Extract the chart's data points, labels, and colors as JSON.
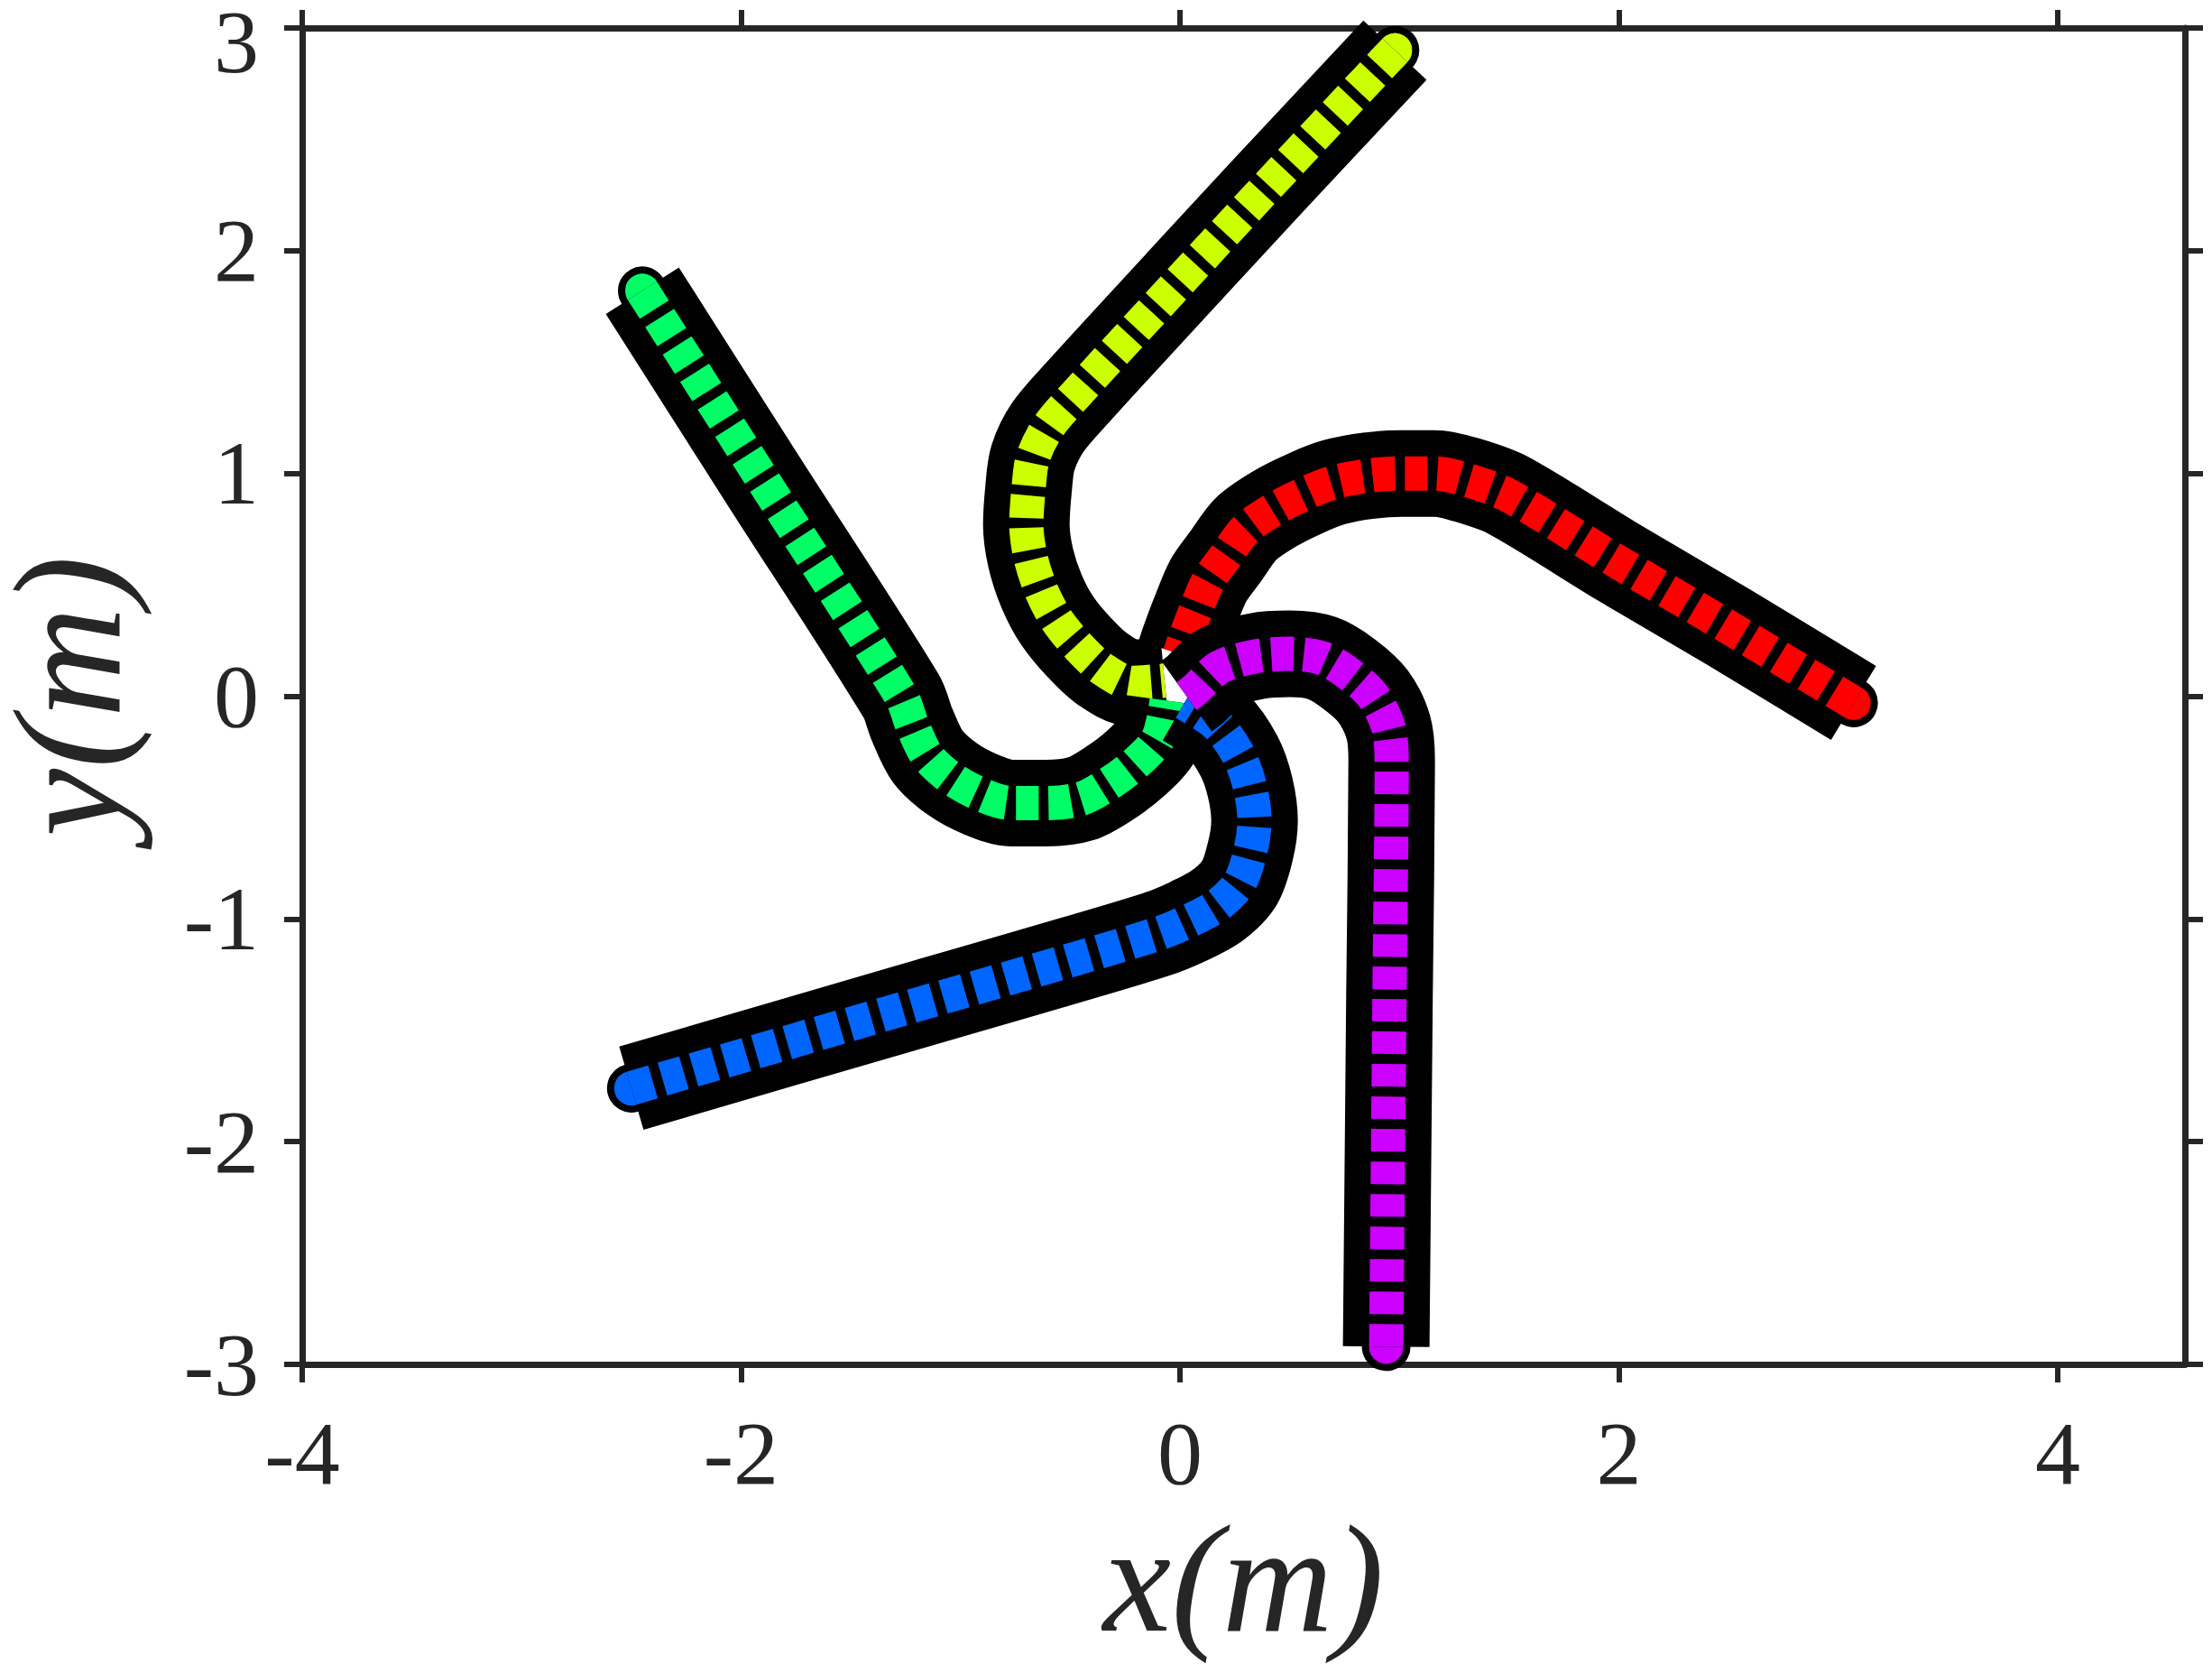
{
  "chart_data": {
    "type": "line",
    "xlabel": "x(m)",
    "ylabel": "y(m)",
    "xlim": [
      -4,
      4.58
    ],
    "ylim": [
      -3,
      3
    ],
    "xticks": [
      -4,
      -2,
      0,
      2,
      4
    ],
    "yticks": [
      -3,
      -2,
      -1,
      0,
      1,
      2,
      3
    ],
    "grid": false,
    "series": [
      {
        "color": "#000000",
        "line_style": "solid",
        "marker": "none",
        "x": [
          3.07,
          2.5,
          2.0,
          1.5,
          1.31,
          1.16,
          1.01,
          0.86,
          0.7,
          0.57,
          0.43,
          0.3,
          0.21,
          0.13,
          0.07,
          0.02,
          0.0
        ],
        "values": [
          -0.03,
          0.31,
          0.6,
          0.9,
          0.97,
          1.0,
          1.0,
          0.99,
          0.96,
          0.91,
          0.84,
          0.75,
          0.63,
          0.52,
          0.38,
          0.25,
          0.19
        ]
      },
      {
        "color": "#ff0000",
        "line_style": "dashed",
        "marker": "none",
        "x": [
          3.07,
          2.5,
          2.0,
          1.5,
          1.31,
          1.16,
          1.01,
          0.86,
          0.7,
          0.57,
          0.43,
          0.3,
          0.21,
          0.13,
          0.07,
          0.02,
          0.0
        ],
        "values": [
          -0.03,
          0.31,
          0.6,
          0.9,
          0.97,
          1.0,
          1.0,
          0.99,
          0.96,
          0.91,
          0.84,
          0.75,
          0.63,
          0.52,
          0.38,
          0.25,
          0.19
        ]
      },
      {
        "color": "#000000",
        "line_style": "solid",
        "marker": "none",
        "x": [
          0.98,
          0.4,
          -0.2,
          -0.46,
          -0.6,
          -0.67,
          -0.69,
          -0.7,
          -0.68,
          -0.63,
          -0.56,
          -0.46,
          -0.35,
          -0.22,
          -0.07
        ],
        "values": [
          2.9,
          2.29,
          1.65,
          1.37,
          1.21,
          1.07,
          0.93,
          0.77,
          0.62,
          0.47,
          0.34,
          0.22,
          0.12,
          0.06,
          0.07
        ]
      },
      {
        "color": "#ccff00",
        "line_style": "dashed",
        "marker": "none",
        "x": [
          0.98,
          0.4,
          -0.2,
          -0.46,
          -0.6,
          -0.67,
          -0.69,
          -0.7,
          -0.68,
          -0.63,
          -0.56,
          -0.46,
          -0.35,
          -0.22,
          -0.07
        ],
        "values": [
          2.9,
          2.29,
          1.65,
          1.37,
          1.21,
          1.07,
          0.93,
          0.77,
          0.62,
          0.47,
          0.34,
          0.22,
          0.12,
          0.06,
          0.07
        ]
      },
      {
        "color": "#000000",
        "line_style": "solid",
        "marker": "none",
        "x": [
          -2.45,
          -1.9,
          -1.27,
          -1.22,
          -1.15,
          -1.04,
          -0.91,
          -0.77,
          -0.61,
          -0.45,
          -0.32,
          -0.2,
          -0.1,
          -0.06
        ],
        "values": [
          1.82,
          0.97,
          0.0,
          -0.13,
          -0.27,
          -0.37,
          -0.44,
          -0.48,
          -0.48,
          -0.46,
          -0.39,
          -0.3,
          -0.19,
          -0.02
        ]
      },
      {
        "color": "#00ff66",
        "line_style": "dashed",
        "marker": "none",
        "x": [
          -2.45,
          -1.9,
          -1.27,
          -1.22,
          -1.15,
          -1.04,
          -0.91,
          -0.77,
          -0.61,
          -0.45,
          -0.32,
          -0.2,
          -0.1,
          -0.06
        ],
        "values": [
          1.82,
          0.97,
          0.0,
          -0.13,
          -0.27,
          -0.37,
          -0.44,
          -0.48,
          -0.48,
          -0.46,
          -0.39,
          -0.3,
          -0.19,
          -0.02
        ]
      },
      {
        "color": "#000000",
        "line_style": "solid",
        "marker": "none",
        "x": [
          -2.5,
          -1.25,
          -0.69,
          -0.11,
          0.04,
          0.17,
          0.27,
          0.32,
          0.34,
          0.32,
          0.27,
          0.17,
          0.02
        ],
        "values": [
          -1.76,
          -1.4,
          -1.24,
          -1.07,
          -1.01,
          -0.94,
          -0.84,
          -0.7,
          -0.56,
          -0.41,
          -0.27,
          -0.13,
          -0.03
        ]
      },
      {
        "color": "#0066ff",
        "line_style": "dashed",
        "marker": "none",
        "x": [
          -2.5,
          -1.25,
          -0.69,
          -0.11,
          0.04,
          0.17,
          0.27,
          0.32,
          0.34,
          0.32,
          0.27,
          0.17,
          0.02
        ],
        "values": [
          -1.76,
          -1.4,
          -1.24,
          -1.07,
          -1.01,
          -0.94,
          -0.84,
          -0.7,
          -0.56,
          -0.41,
          -0.27,
          -0.13,
          -0.03
        ]
      },
      {
        "color": "#000000",
        "line_style": "solid",
        "marker": "none",
        "x": [
          0.94,
          0.955,
          0.965,
          0.95,
          0.88,
          0.77,
          0.65,
          0.5,
          0.35,
          0.18,
          0.07,
          0.03
        ],
        "values": [
          -2.92,
          -1.34,
          -0.29,
          -0.14,
          0.0,
          0.1,
          0.17,
          0.19,
          0.18,
          0.13,
          0.03,
          0.0
        ]
      },
      {
        "color": "#cc00ff",
        "line_style": "dashed",
        "marker": "none",
        "x": [
          0.94,
          0.955,
          0.965,
          0.95,
          0.88,
          0.77,
          0.65,
          0.5,
          0.35,
          0.18,
          0.07,
          0.03
        ],
        "values": [
          -2.92,
          -1.34,
          -0.29,
          -0.14,
          0.0,
          0.1,
          0.17,
          0.19,
          0.18,
          0.13,
          0.03,
          0.0
        ]
      },
      {
        "type": "scatter",
        "marker": "circle",
        "x": [
          3.07,
          0.98,
          -2.45,
          -2.5,
          0.94
        ],
        "values": [
          -0.03,
          2.9,
          1.82,
          -1.76,
          -2.92
        ],
        "colors": [
          "#ff0000",
          "#ccff00",
          "#00ff66",
          "#0066ff",
          "#cc00ff"
        ]
      }
    ]
  }
}
